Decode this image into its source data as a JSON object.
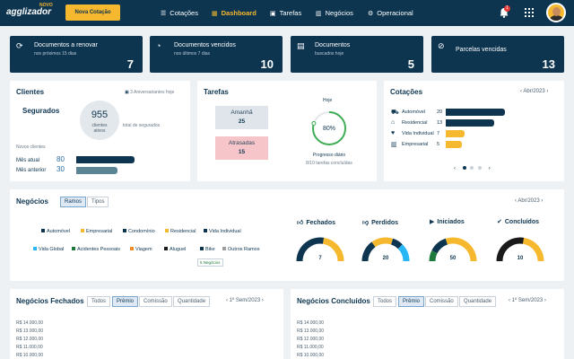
{
  "topbar": {
    "logo": "agglizador",
    "logo_badge": "NOVO",
    "new_quote": "Nova Cotação",
    "nav": [
      {
        "label": "Cotações",
        "icon": "list-icon"
      },
      {
        "label": "Dashboard",
        "icon": "dashboard-icon",
        "active": true
      },
      {
        "label": "Tarefas",
        "icon": "calendar-icon"
      },
      {
        "label": "Negócios",
        "icon": "chart-icon"
      },
      {
        "label": "Operacional",
        "icon": "gear-icon"
      }
    ],
    "notifications": "1"
  },
  "kpis": [
    {
      "title": "Documentos a renovar",
      "sub": "nos próximos 15 dias",
      "value": "7",
      "icon": "refresh-icon"
    },
    {
      "title": "Documentos vencidos",
      "sub": "nos últimos 7 dias",
      "value": "10",
      "icon": "clock-icon"
    },
    {
      "title": "Documentos",
      "sub": "buscados hoje",
      "value": "5",
      "icon": "document-icon"
    },
    {
      "title": "Parcelas vencidas",
      "sub": "",
      "value": "13",
      "icon": "card-off-icon"
    }
  ],
  "clientes": {
    "title": "Clientes",
    "birthdays": "3 Aniversariantes hoje",
    "segurados_label": "Segurados",
    "circle_value": "955",
    "circle_label": "clientes ativos",
    "total_label": "total de segurados",
    "novos_label": "Novos clientes",
    "rows": [
      {
        "label": "Mês atual",
        "value": "80",
        "fraction": 0.85
      },
      {
        "label": "Mês anterior",
        "value": "30",
        "fraction": 0.6
      }
    ]
  },
  "tarefas": {
    "title": "Tarefas",
    "amanha_label": "Amanhã",
    "amanha_value": "25",
    "atrasadas_label": "Atrasadas",
    "atrasadas_value": "15",
    "hoje_label": "Hoje",
    "progress_value": "80%",
    "progress_fraction": 0.8,
    "progress_label": "Progresso diário",
    "progress_sub": "8/10 tarefas concluídas"
  },
  "cotacoes": {
    "title": "Cotações",
    "period": "Abr/2023",
    "rows": [
      {
        "label": "Automóvel",
        "value": "20",
        "fraction": 1.0,
        "color": "dark",
        "icon": "car-icon"
      },
      {
        "label": "Residencial",
        "value": "13",
        "fraction": 0.82,
        "color": "dark",
        "icon": "house-icon"
      },
      {
        "label": "Vida Individual",
        "value": "7",
        "fraction": 0.32,
        "color": "yellow",
        "icon": "heart-icon"
      },
      {
        "label": "Empresarial",
        "value": "5",
        "fraction": 0.28,
        "color": "yellow",
        "icon": "building-icon"
      }
    ]
  },
  "negocios": {
    "title": "Negócios",
    "tabs": [
      "Ramos",
      "Tipos"
    ],
    "period": "Abr/2023",
    "legend": [
      {
        "label": "Automóvel",
        "color": "#0d3550"
      },
      {
        "label": "Empresarial",
        "color": "#f5b82e"
      },
      {
        "label": "Condomínio",
        "color": "#0d3550"
      },
      {
        "label": "Residencial",
        "color": "#f5b82e"
      },
      {
        "label": "Vida Individual",
        "color": "#0d3550"
      },
      {
        "label": "Vida Global",
        "color": "#29b6f6"
      },
      {
        "label": "Acidentes Pessoais",
        "color": "#1e7a3c"
      },
      {
        "label": "Viagem",
        "color": "#f08a24"
      },
      {
        "label": "Aluguel",
        "color": "#1a1a1a"
      },
      {
        "label": "Bike",
        "color": "#0d3550"
      },
      {
        "label": "Outros Ramos",
        "color": "#9e9e9e"
      }
    ],
    "total_label": "5 Negócios",
    "gauges": [
      {
        "label": "Fechados",
        "value": "7",
        "icon": "thumb-up-icon"
      },
      {
        "label": "Perdidos",
        "value": "20",
        "icon": "thumb-down-icon"
      },
      {
        "label": "Iniciados",
        "value": "50",
        "icon": "play-icon"
      },
      {
        "label": "Concluídos",
        "value": "10",
        "icon": "check-icon"
      }
    ]
  },
  "fechados": {
    "title": "Negócios Fechados",
    "tabs": [
      "Todos",
      "Prêmio",
      "Comissão",
      "Quantidade"
    ],
    "period": "1º Sem/2023",
    "ylabels": [
      "R$ 14.000,00",
      "R$ 13.000,00",
      "R$ 12.000,00",
      "R$ 11.000,00",
      "R$ 10.000,00"
    ]
  },
  "concluidos": {
    "title": "Negócios Concluídos",
    "tabs": [
      "Todos",
      "Prêmio",
      "Comissão",
      "Quantidade"
    ],
    "period": "1º Sem/2023",
    "ylabels": [
      "R$ 14.000,00",
      "R$ 13.000,00",
      "R$ 12.000,00",
      "R$ 11.000,00",
      "R$ 10.000,00"
    ]
  }
}
